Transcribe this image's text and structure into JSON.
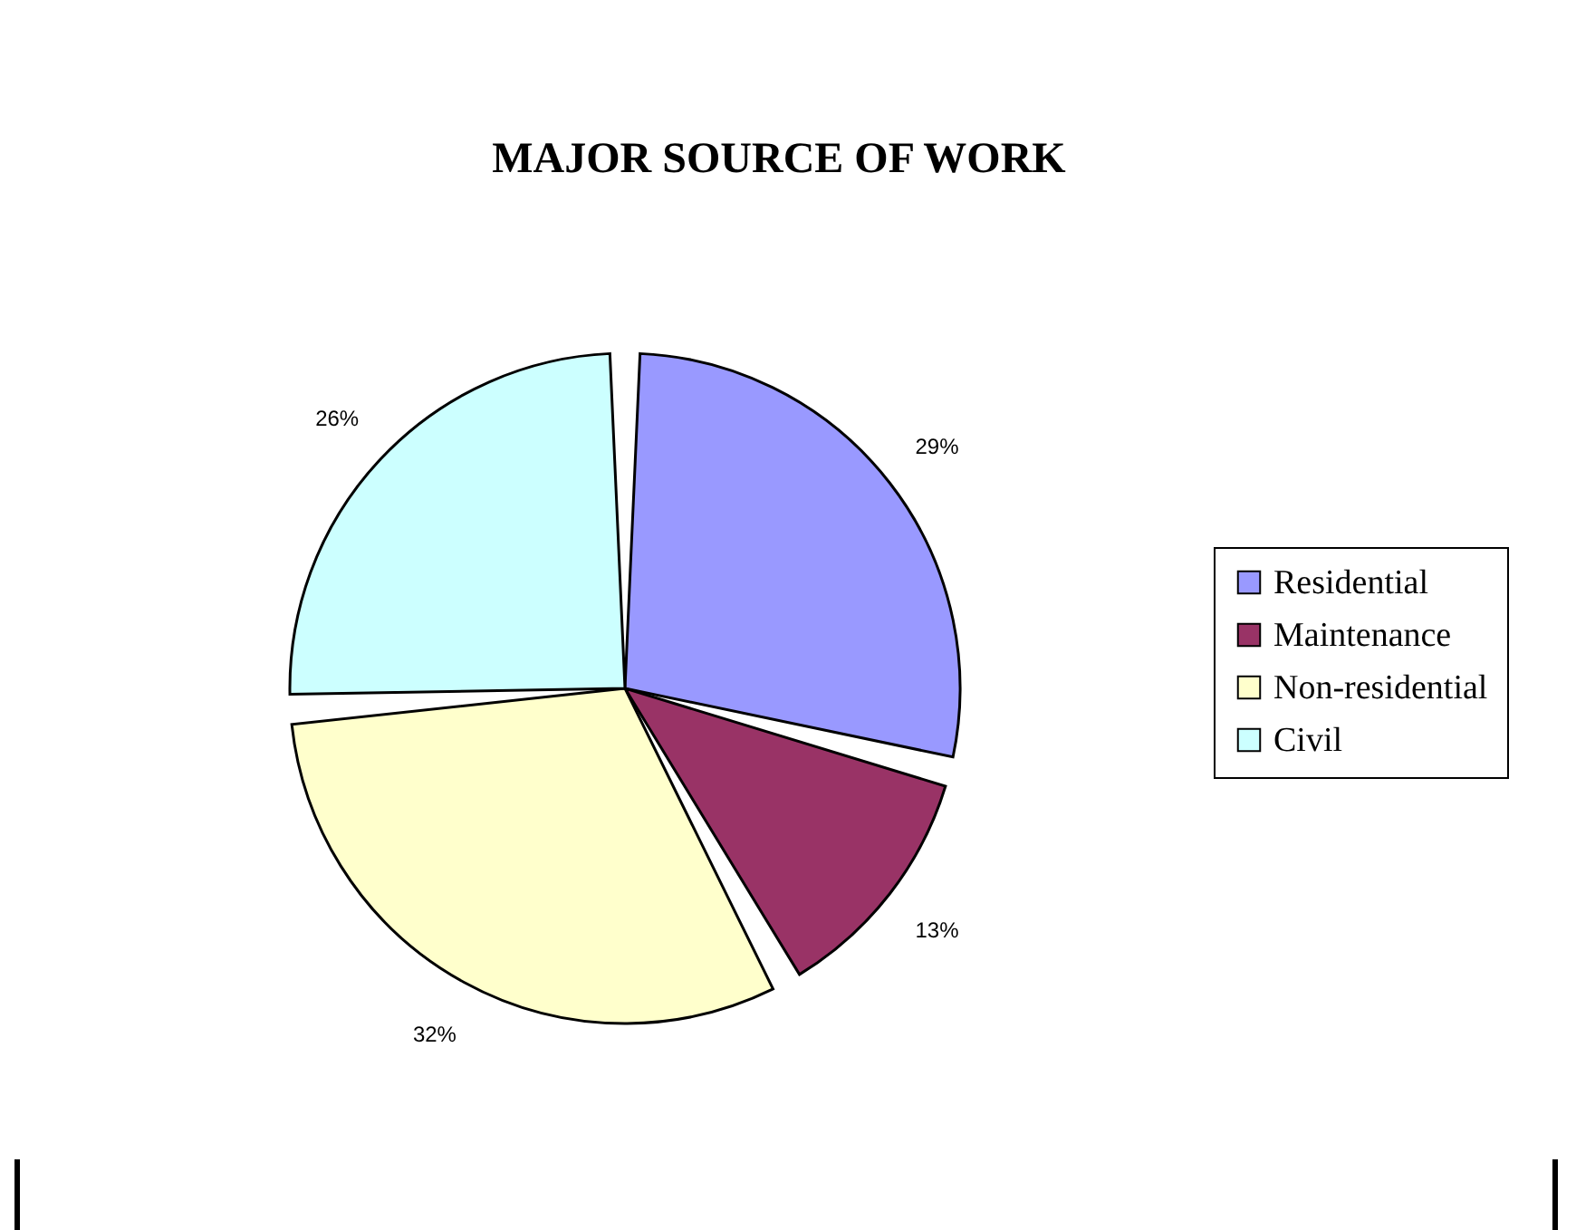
{
  "chart_data": {
    "type": "pie",
    "title": "MAJOR SOURCE OF WORK",
    "categories": [
      "Residential",
      "Maintenance",
      " Non-residential",
      "Civil"
    ],
    "values": [
      29,
      13,
      32,
      26
    ],
    "colors": [
      "#9999ff",
      "#993366",
      "#ffffcc",
      "#ccffff"
    ],
    "value_labels": [
      "29%",
      "13%",
      "32%",
      "26%"
    ],
    "legend": "right"
  }
}
